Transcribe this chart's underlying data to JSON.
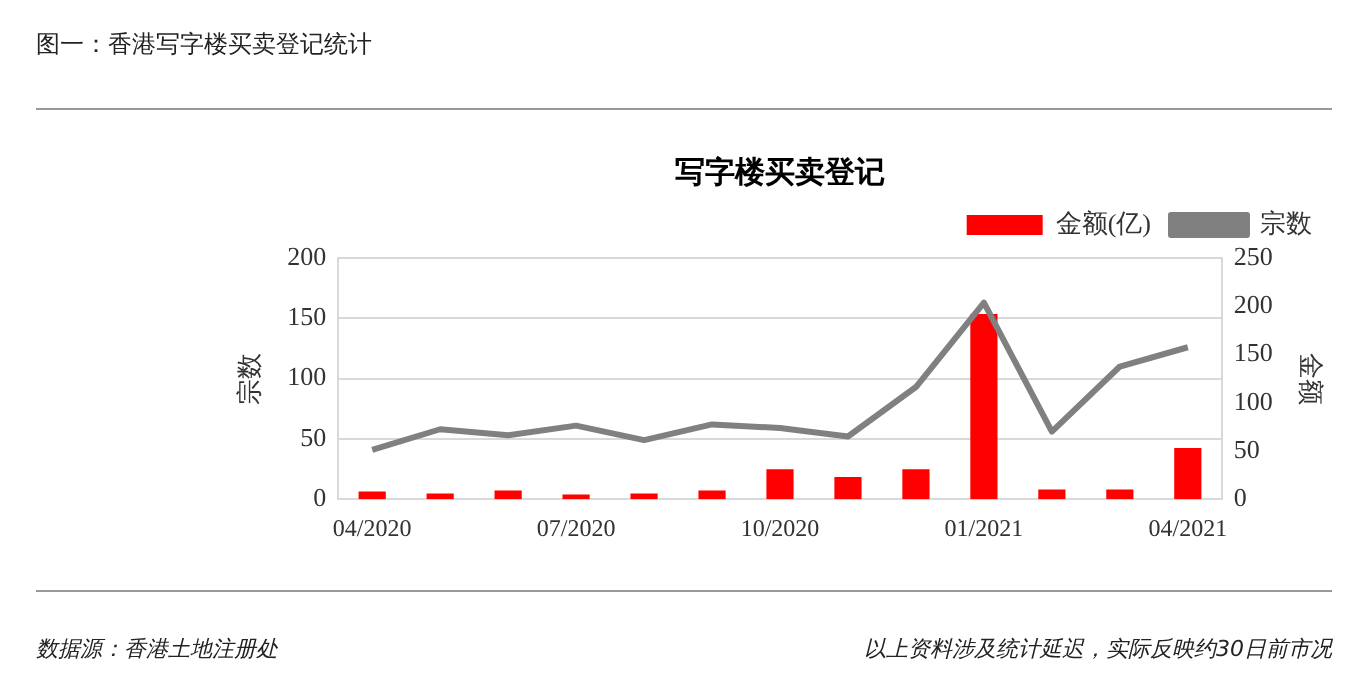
{
  "chart_data": {
    "type": "bar",
    "title": "写字楼买卖登记",
    "ylabel": "宗数",
    "y2label": "金额",
    "annotations": [
      "图一：香港写字楼买卖登记统计",
      "数据源：香港土地注册处",
      "以上资料涉及统计延迟，实际反映约30日前市况"
    ],
    "categories": [
      "04/2020",
      null,
      null,
      "07/2020",
      null,
      null,
      "10/2020",
      null,
      null,
      "01/2021",
      null,
      null,
      "04/2021"
    ],
    "series": [
      {
        "name": "金额(亿)",
        "axis": "y2",
        "color": "#ff0000",
        "values": [
          8,
          6,
          9,
          5,
          6,
          9,
          31,
          23,
          31,
          192,
          10,
          10,
          53
        ]
      },
      {
        "name": "宗数",
        "type": "line",
        "color": "#808080",
        "values": [
          41,
          58,
          53,
          61,
          49,
          62,
          59,
          52,
          93,
          163,
          56,
          110,
          126
        ]
      }
    ],
    "ylim": [
      0,
      200
    ],
    "yticks": [
      0,
      50,
      100,
      150,
      200
    ],
    "y2lim": [
      0,
      250
    ],
    "y2ticks": [
      0,
      50,
      100,
      150,
      200,
      250
    ],
    "grid": "y",
    "legend": "top right",
    "marker": "none"
  }
}
